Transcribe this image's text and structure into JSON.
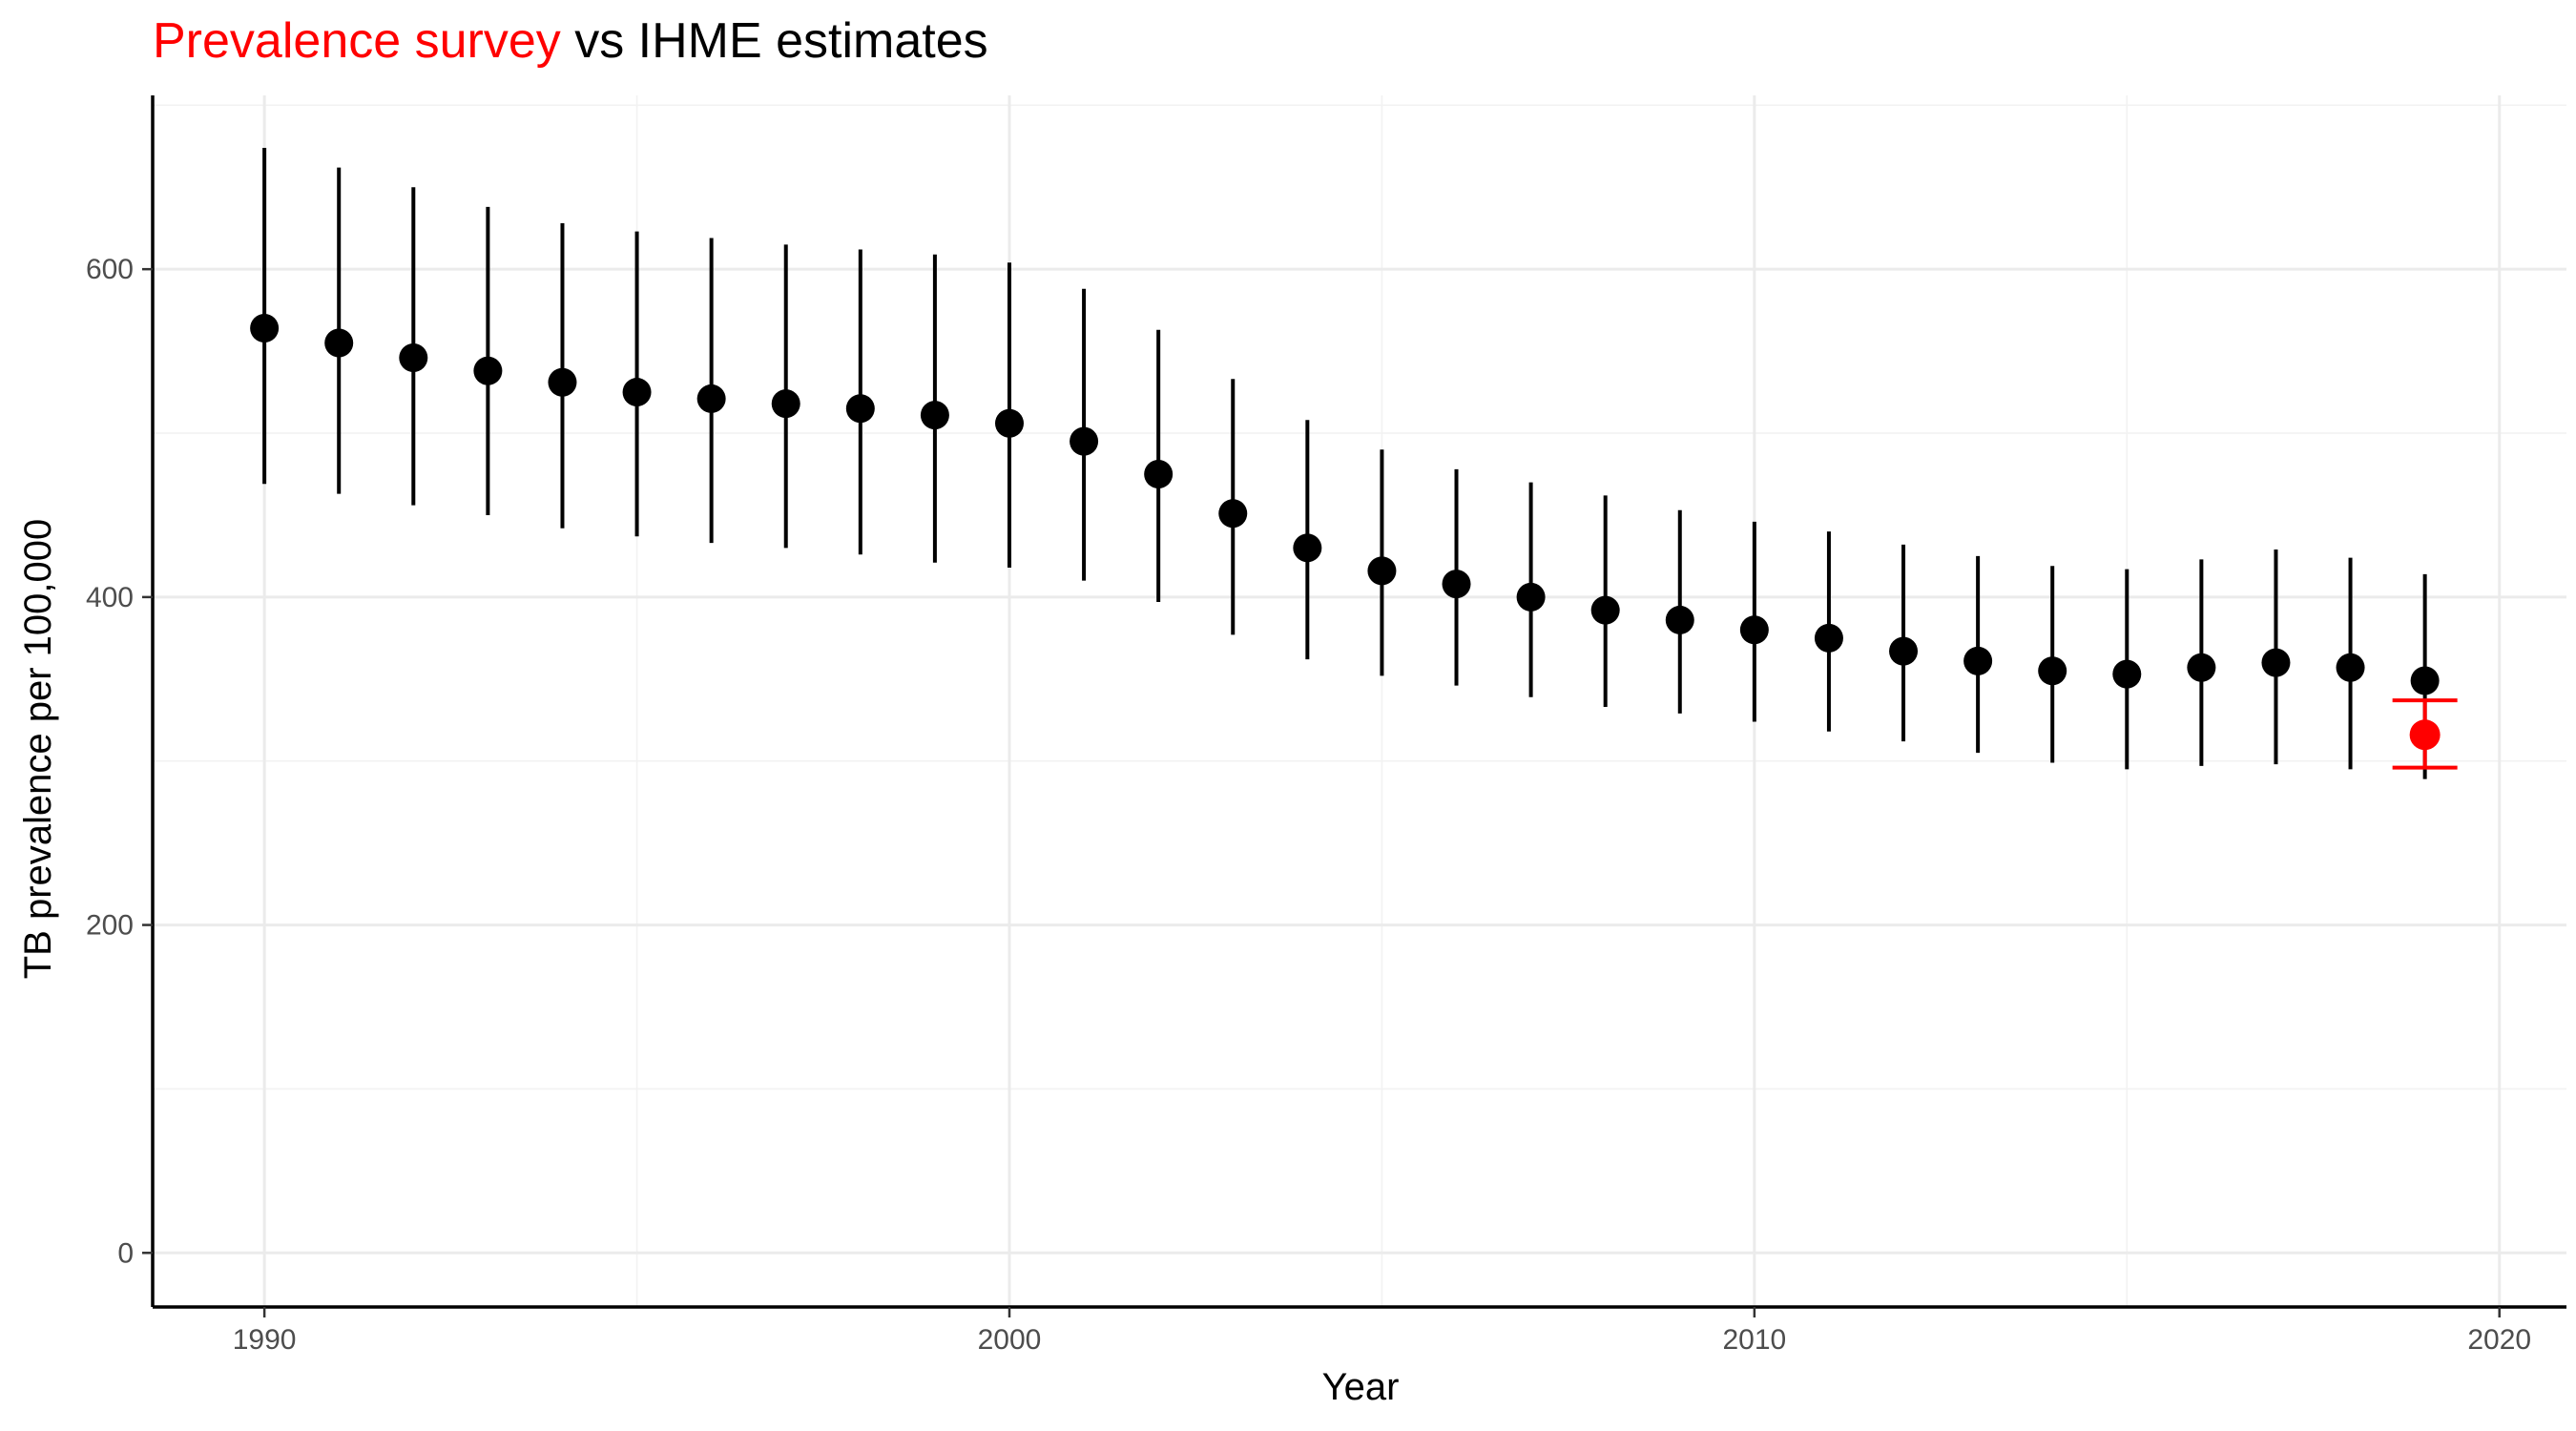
{
  "chart_data": {
    "type": "scatter",
    "title_parts": [
      {
        "text": "Prevalence survey",
        "color": "#ff0000"
      },
      {
        "text": " vs IHME estimates",
        "color": "#000000"
      }
    ],
    "xlabel": "Year",
    "ylabel": "TB prevalence per 100,000",
    "xlim": [
      1988.5,
      2020.9
    ],
    "ylim": [
      -33,
      706
    ],
    "x_ticks": [
      1990,
      2000,
      2010,
      2020
    ],
    "x_tick_labels": [
      "1990",
      "2000",
      "2010",
      "2020"
    ],
    "y_ticks": [
      0,
      200,
      400,
      600
    ],
    "y_tick_labels": [
      "0",
      "200",
      "400",
      "600"
    ],
    "grid": true,
    "series": [
      {
        "color": "#000000",
        "points": [
          {
            "x": 1990,
            "y": 564,
            "lower": 469,
            "upper": 674
          },
          {
            "x": 1991,
            "y": 555,
            "lower": 463,
            "upper": 662
          },
          {
            "x": 1992,
            "y": 546,
            "lower": 456,
            "upper": 650
          },
          {
            "x": 1993,
            "y": 538,
            "lower": 450,
            "upper": 638
          },
          {
            "x": 1994,
            "y": 531,
            "lower": 442,
            "upper": 628
          },
          {
            "x": 1995,
            "y": 525,
            "lower": 437,
            "upper": 623
          },
          {
            "x": 1996,
            "y": 521,
            "lower": 433,
            "upper": 619
          },
          {
            "x": 1997,
            "y": 518,
            "lower": 430,
            "upper": 615
          },
          {
            "x": 1998,
            "y": 515,
            "lower": 426,
            "upper": 612
          },
          {
            "x": 1999,
            "y": 511,
            "lower": 421,
            "upper": 609
          },
          {
            "x": 2000,
            "y": 506,
            "lower": 418,
            "upper": 604
          },
          {
            "x": 2001,
            "y": 495,
            "lower": 410,
            "upper": 588
          },
          {
            "x": 2002,
            "y": 475,
            "lower": 397,
            "upper": 563
          },
          {
            "x": 2003,
            "y": 451,
            "lower": 377,
            "upper": 533
          },
          {
            "x": 2004,
            "y": 430,
            "lower": 362,
            "upper": 508
          },
          {
            "x": 2005,
            "y": 416,
            "lower": 352,
            "upper": 490
          },
          {
            "x": 2006,
            "y": 408,
            "lower": 346,
            "upper": 478
          },
          {
            "x": 2007,
            "y": 400,
            "lower": 339,
            "upper": 470
          },
          {
            "x": 2008,
            "y": 392,
            "lower": 333,
            "upper": 462
          },
          {
            "x": 2009,
            "y": 386,
            "lower": 329,
            "upper": 453
          },
          {
            "x": 2010,
            "y": 380,
            "lower": 324,
            "upper": 446
          },
          {
            "x": 2011,
            "y": 375,
            "lower": 318,
            "upper": 440
          },
          {
            "x": 2012,
            "y": 367,
            "lower": 312,
            "upper": 432
          },
          {
            "x": 2013,
            "y": 361,
            "lower": 305,
            "upper": 425
          },
          {
            "x": 2014,
            "y": 355,
            "lower": 299,
            "upper": 419
          },
          {
            "x": 2015,
            "y": 353,
            "lower": 295,
            "upper": 417
          },
          {
            "x": 2016,
            "y": 357,
            "lower": 297,
            "upper": 423
          },
          {
            "x": 2017,
            "y": 360,
            "lower": 298,
            "upper": 429
          },
          {
            "x": 2018,
            "y": 357,
            "lower": 295,
            "upper": 424
          },
          {
            "x": 2019,
            "y": 349,
            "lower": 289,
            "upper": 414
          }
        ]
      },
      {
        "color": "#ff0000",
        "points": [
          {
            "x": 2019,
            "y": 316,
            "lower": 296,
            "upper": 337
          }
        ]
      }
    ]
  }
}
